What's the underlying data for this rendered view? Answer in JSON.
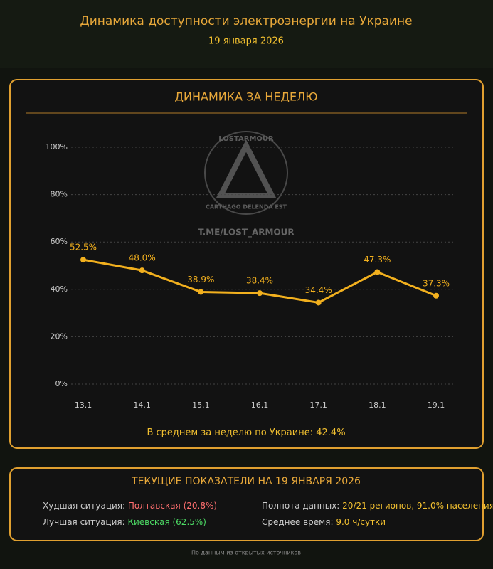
{
  "header": {
    "title": "Динамика доступности электроэнергии на Украине",
    "date": "19 января 2026"
  },
  "watermark": {
    "ring": "LOSTARMOUR",
    "motto": "CARTHAGO DELENDA EST",
    "link": "T.ME/LOST_ARMOUR"
  },
  "weekly": {
    "heading": "ДИНАМИКА ЗА НЕДЕЛЮ",
    "average_label": "В среднем за неделю по Украине:",
    "average_value": "42.4%"
  },
  "chart_data": {
    "type": "line",
    "categories": [
      "13.1",
      "14.1",
      "15.1",
      "16.1",
      "17.1",
      "18.1",
      "19.1"
    ],
    "values": [
      52.5,
      48.0,
      38.9,
      38.4,
      34.4,
      47.3,
      37.3
    ],
    "value_labels": [
      "52.5%",
      "48.0%",
      "38.9%",
      "38.4%",
      "34.4%",
      "47.3%",
      "37.3%"
    ],
    "color": "#f2b01e",
    "ylim": [
      0,
      100
    ],
    "yticks": [
      {
        "value": 0,
        "label": "0%"
      },
      {
        "value": 20,
        "label": "20%"
      },
      {
        "value": 40,
        "label": "40%"
      },
      {
        "value": 60,
        "label": "60%"
      },
      {
        "value": 80,
        "label": "80%"
      },
      {
        "value": 100,
        "label": "100%"
      }
    ],
    "grid": true
  },
  "current": {
    "heading": "ТЕКУЩИЕ ПОКАЗАТЕЛИ НА 19 ЯНВАРЯ 2026",
    "worst_label": "Худшая ситуация:",
    "worst_value": "Полтавская (20.8%)",
    "best_label": "Лучшая ситуация:",
    "best_value": "Киевская (62.5%)",
    "completeness_label": "Полнота данных:",
    "completeness_value": "20/21 регионов, 91.0% населения",
    "avg_time_label": "Среднее время:",
    "avg_time_value": "9.0 ч/сутки"
  },
  "footer": "По данным из открытых источников"
}
